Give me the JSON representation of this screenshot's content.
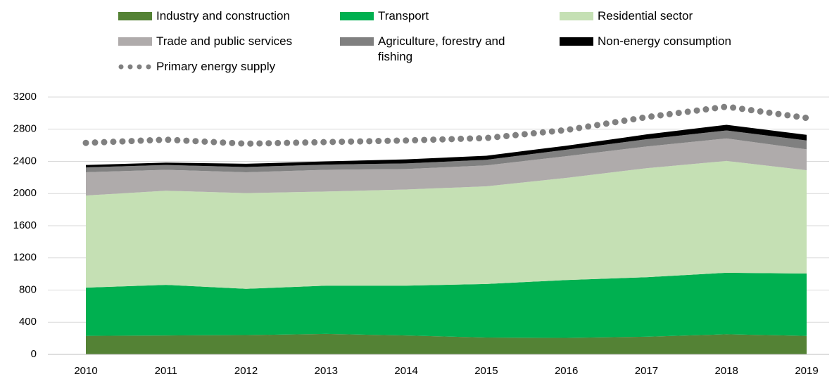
{
  "chart_data": {
    "type": "area",
    "stacked": true,
    "categories": [
      "2010",
      "2011",
      "2012",
      "2013",
      "2014",
      "2015",
      "2016",
      "2017",
      "2018",
      "2019"
    ],
    "series": [
      {
        "name": "Industry and construction",
        "color": "#548235",
        "values": [
          230,
          235,
          240,
          255,
          235,
          210,
          205,
          220,
          250,
          230
        ]
      },
      {
        "name": "Transport",
        "color": "#00b050",
        "values": [
          600,
          630,
          575,
          600,
          620,
          665,
          720,
          740,
          765,
          775
        ]
      },
      {
        "name": "Residential sector",
        "color": "#c5e0b4",
        "values": [
          1145,
          1170,
          1190,
          1170,
          1195,
          1215,
          1270,
          1355,
          1390,
          1285
        ]
      },
      {
        "name": "Trade and public services",
        "color": "#afabab",
        "values": [
          290,
          260,
          260,
          270,
          255,
          260,
          270,
          270,
          280,
          260
        ]
      },
      {
        "name": "Agriculture, forestry and fishing",
        "color": "#808080",
        "values": [
          60,
          60,
          65,
          65,
          70,
          70,
          80,
          90,
          100,
          110
        ]
      },
      {
        "name": "Non-energy consumption",
        "color": "#000000",
        "values": [
          30,
          30,
          40,
          40,
          50,
          50,
          50,
          60,
          70,
          70
        ]
      },
      {
        "name": "Primary energy supply",
        "color": "#808080",
        "type": "line",
        "style": "dotted",
        "values": [
          2630,
          2670,
          2620,
          2640,
          2660,
          2690,
          2790,
          2950,
          3080,
          2940
        ]
      }
    ],
    "ylim": [
      0,
      3200
    ],
    "yticks": [
      0,
      400,
      800,
      1200,
      1600,
      2000,
      2400,
      2800,
      3200
    ],
    "grid": true
  }
}
